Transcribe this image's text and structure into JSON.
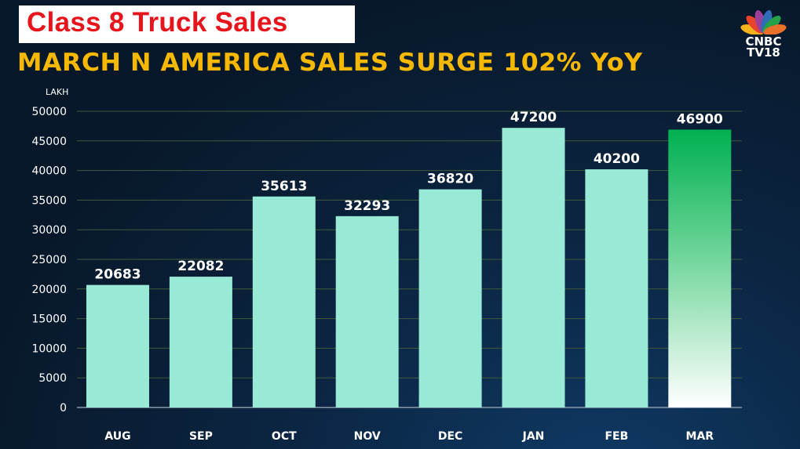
{
  "header": {
    "title": "Class 8 Truck Sales",
    "subtitle": "MARCH N AMERICA SALES SURGE 102% YoY"
  },
  "logo": {
    "line1": "CNBC",
    "line2": "TV18"
  },
  "chart_data": {
    "type": "bar",
    "ylabel": "LAKH",
    "categories": [
      "AUG",
      "SEP",
      "OCT",
      "NOV",
      "DEC",
      "JAN",
      "FEB",
      "MAR"
    ],
    "values": [
      20683,
      22082,
      35613,
      32293,
      36820,
      47200,
      40200,
      46900
    ],
    "ylim": [
      0,
      50000
    ],
    "yticks": [
      0,
      5000,
      10000,
      15000,
      20000,
      25000,
      30000,
      35000,
      40000,
      45000,
      50000
    ],
    "grid": true,
    "colors": {
      "bar": "#98e9d6",
      "highlight_top": "#00b050",
      "highlight_bottom": "#ffffff",
      "grid": "#3f5a3a",
      "text": "#ffffff"
    }
  }
}
